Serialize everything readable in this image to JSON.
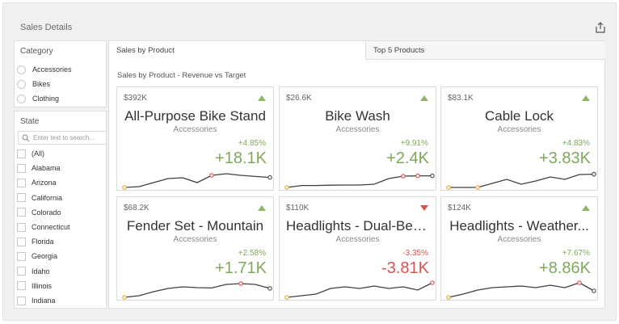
{
  "dashboard": {
    "title": "Sales Details",
    "export_icon": "export-icon"
  },
  "category": {
    "title": "Category",
    "items": [
      "Accessories",
      "Bikes",
      "Clothing"
    ]
  },
  "state": {
    "title": "State",
    "search_placeholder": "Enter text to search...",
    "items": [
      "(All)",
      "Alabama",
      "Arizona",
      "California",
      "Colorado",
      "Connecticut",
      "Florida",
      "Georgia",
      "Idaho",
      "Illinois",
      "Indiana"
    ]
  },
  "tabs": {
    "active": "Sales by Product",
    "inactive": "Top 5 Products"
  },
  "main": {
    "subtitle": "Sales by Product - Revenue vs Target"
  },
  "colors": {
    "positive": "#7ea85a",
    "negative": "#d9534f",
    "spark_line": "#3f3f3f",
    "start_marker": "#f0a830",
    "end_marker": "#555555"
  },
  "cards": [
    {
      "target": "$392K",
      "name": "All-Purpose Bike Stand",
      "category": "Accessories",
      "percent": "+4.85%",
      "delta": "+18.1K",
      "trend": "up",
      "spark": [
        0.0,
        0.05,
        0.3,
        0.55,
        0.6,
        0.3,
        0.75,
        0.85,
        0.75,
        0.68,
        0.62
      ],
      "spark_red": [
        6
      ]
    },
    {
      "target": "$26.6K",
      "name": "Bike Wash",
      "category": "Accessories",
      "percent": "+9.91%",
      "delta": "+2.4K",
      "trend": "up",
      "spark": [
        0.0,
        0.12,
        0.12,
        0.14,
        0.15,
        0.15,
        0.2,
        0.55,
        0.7,
        0.72,
        0.72
      ],
      "spark_red": [
        8,
        9
      ]
    },
    {
      "target": "$83.1K",
      "name": "Cable Lock",
      "category": "Accessories",
      "percent": "+4.83%",
      "delta": "+3.83K",
      "trend": "up",
      "spark": [
        0.0,
        0.0,
        0.0,
        0.25,
        0.5,
        0.2,
        0.4,
        0.65,
        0.5,
        0.8,
        0.82
      ],
      "spark_red": [
        10
      ],
      "spark_orange": [
        2
      ]
    },
    {
      "target": "$68.2K",
      "name": "Fender Set - Mountain",
      "category": "Accessories",
      "percent": "+2.58%",
      "delta": "+1.71K",
      "trend": "up",
      "spark": [
        0.0,
        0.1,
        0.35,
        0.55,
        0.65,
        0.6,
        0.58,
        0.8,
        0.85,
        0.8,
        0.55
      ],
      "spark_red": [
        8
      ]
    },
    {
      "target": "$110K",
      "name": "Headlights - Dual-Beam",
      "category": "Accessories",
      "percent": "-3.35%",
      "delta": "-3.81K",
      "trend": "down",
      "spark": [
        0.0,
        0.1,
        0.2,
        0.55,
        0.65,
        0.55,
        0.7,
        0.55,
        0.65,
        0.45,
        0.9
      ],
      "spark_red": [
        10
      ],
      "no_end": true
    },
    {
      "target": "$124K",
      "name": "Headlights - Weather...",
      "category": "Accessories",
      "percent": "+7.67%",
      "delta": "+8.86K",
      "trend": "up",
      "spark": [
        0.0,
        0.2,
        0.45,
        0.6,
        0.65,
        0.7,
        0.6,
        0.75,
        0.6,
        0.9,
        0.4
      ],
      "spark_red": [
        9
      ]
    }
  ]
}
